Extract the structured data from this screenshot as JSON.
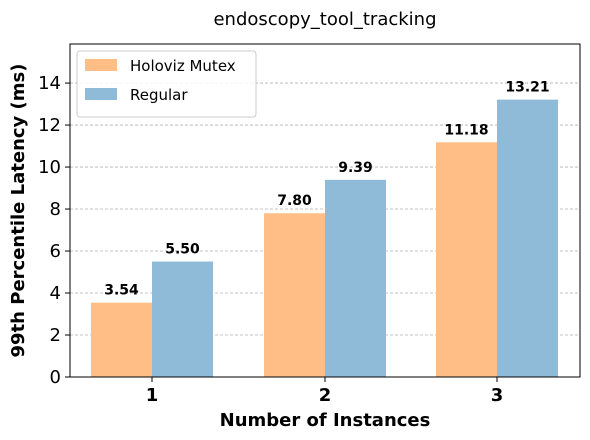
{
  "chart_data": {
    "type": "bar",
    "title": "endoscopy_tool_tracking",
    "xlabel": "Number of Instances",
    "ylabel": "99th Percentile Latency (ms)",
    "categories": [
      "1",
      "2",
      "3"
    ],
    "series": [
      {
        "name": "Holoviz Mutex",
        "color": "#ffbe86",
        "values": [
          3.54,
          7.8,
          11.18
        ],
        "labels": [
          "3.54",
          "7.80",
          "11.18"
        ]
      },
      {
        "name": "Regular",
        "color": "#8fbbd9",
        "values": [
          5.5,
          9.39,
          13.21
        ],
        "labels": [
          "5.50",
          "9.39",
          "13.21"
        ]
      }
    ],
    "ylim": [
      0,
      15.86
    ],
    "yticks": [
      0,
      2,
      4,
      6,
      8,
      10,
      12,
      14
    ],
    "grid": "horizontal dashed",
    "legend_position": "top-left"
  }
}
